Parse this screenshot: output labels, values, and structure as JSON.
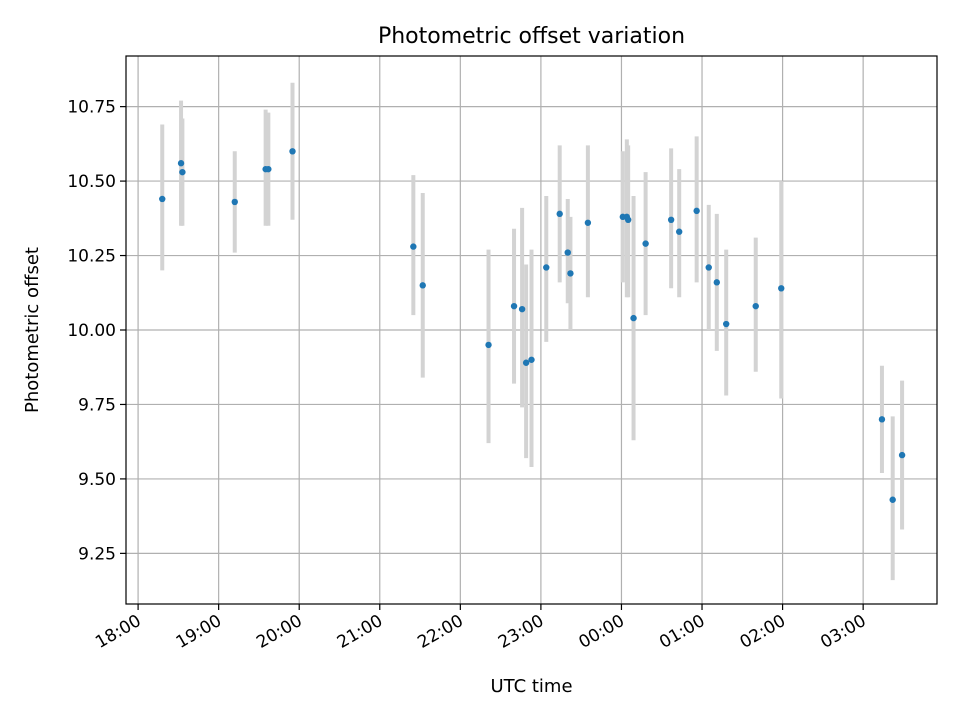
{
  "chart_data": {
    "type": "scatter",
    "title": "Photometric offset variation",
    "xlabel": "UTC time",
    "ylabel": "Photometric offset",
    "x_axis": {
      "ticks": [
        0,
        60,
        120,
        180,
        240,
        300,
        360,
        420,
        480,
        540
      ],
      "tick_labels": [
        "18:00",
        "19:00",
        "20:00",
        "21:00",
        "22:00",
        "23:00",
        "00:00",
        "01:00",
        "02:00",
        "03:00"
      ],
      "range": [
        -9,
        595
      ]
    },
    "y_axis": {
      "ticks": [
        9.25,
        9.5,
        9.75,
        10.0,
        10.25,
        10.5,
        10.75
      ],
      "tick_labels": [
        "9.25",
        "9.50",
        "9.75",
        "10.00",
        "10.25",
        "10.50",
        "10.75"
      ],
      "range": [
        9.08,
        10.92
      ]
    },
    "grid": true,
    "colors": {
      "point": "#1f77b4",
      "errorbar": "#d3d3d3",
      "grid": "#b0b0b0"
    },
    "points": [
      {
        "t": "18:18",
        "y": 10.44,
        "lo": 10.2,
        "hi": 10.69
      },
      {
        "t": "18:32",
        "y": 10.56,
        "lo": 10.35,
        "hi": 10.77
      },
      {
        "t": "18:33",
        "y": 10.53,
        "lo": 10.35,
        "hi": 10.71
      },
      {
        "t": "19:12",
        "y": 10.43,
        "lo": 10.26,
        "hi": 10.6
      },
      {
        "t": "19:35",
        "y": 10.54,
        "lo": 10.35,
        "hi": 10.74
      },
      {
        "t": "19:37",
        "y": 10.54,
        "lo": 10.35,
        "hi": 10.73
      },
      {
        "t": "19:55",
        "y": 10.6,
        "lo": 10.37,
        "hi": 10.83
      },
      {
        "t": "21:25",
        "y": 10.28,
        "lo": 10.05,
        "hi": 10.52
      },
      {
        "t": "21:32",
        "y": 10.15,
        "lo": 9.84,
        "hi": 10.46
      },
      {
        "t": "22:21",
        "y": 9.95,
        "lo": 9.62,
        "hi": 10.27
      },
      {
        "t": "22:40",
        "y": 10.08,
        "lo": 9.82,
        "hi": 10.34
      },
      {
        "t": "22:46",
        "y": 10.07,
        "lo": 9.74,
        "hi": 10.41
      },
      {
        "t": "22:49",
        "y": 9.89,
        "lo": 9.57,
        "hi": 10.22
      },
      {
        "t": "22:53",
        "y": 9.9,
        "lo": 9.54,
        "hi": 10.27
      },
      {
        "t": "23:04",
        "y": 10.21,
        "lo": 9.96,
        "hi": 10.45
      },
      {
        "t": "23:14",
        "y": 10.39,
        "lo": 10.16,
        "hi": 10.62
      },
      {
        "t": "23:20",
        "y": 10.26,
        "lo": 10.09,
        "hi": 10.44
      },
      {
        "t": "23:22",
        "y": 10.19,
        "lo": 10.0,
        "hi": 10.38
      },
      {
        "t": "23:35",
        "y": 10.36,
        "lo": 10.11,
        "hi": 10.62
      },
      {
        "t": "00:01",
        "y": 10.38,
        "lo": 10.16,
        "hi": 10.6
      },
      {
        "t": "00:04",
        "y": 10.38,
        "lo": 10.11,
        "hi": 10.64
      },
      {
        "t": "00:05",
        "y": 10.37,
        "lo": 10.11,
        "hi": 10.62
      },
      {
        "t": "00:09",
        "y": 10.04,
        "lo": 9.63,
        "hi": 10.45
      },
      {
        "t": "00:18",
        "y": 10.29,
        "lo": 10.05,
        "hi": 10.53
      },
      {
        "t": "00:37",
        "y": 10.37,
        "lo": 10.14,
        "hi": 10.61
      },
      {
        "t": "00:43",
        "y": 10.33,
        "lo": 10.11,
        "hi": 10.54
      },
      {
        "t": "00:56",
        "y": 10.4,
        "lo": 10.16,
        "hi": 10.65
      },
      {
        "t": "01:05",
        "y": 10.21,
        "lo": 10.0,
        "hi": 10.42
      },
      {
        "t": "01:11",
        "y": 10.16,
        "lo": 9.93,
        "hi": 10.39
      },
      {
        "t": "01:18",
        "y": 10.02,
        "lo": 9.78,
        "hi": 10.27
      },
      {
        "t": "01:40",
        "y": 10.08,
        "lo": 9.86,
        "hi": 10.31
      },
      {
        "t": "01:59",
        "y": 10.14,
        "lo": 9.77,
        "hi": 10.5
      },
      {
        "t": "03:14",
        "y": 9.7,
        "lo": 9.52,
        "hi": 9.88
      },
      {
        "t": "03:22",
        "y": 9.43,
        "lo": 9.16,
        "hi": 9.71
      },
      {
        "t": "03:29",
        "y": 9.58,
        "lo": 9.33,
        "hi": 9.83
      }
    ]
  }
}
